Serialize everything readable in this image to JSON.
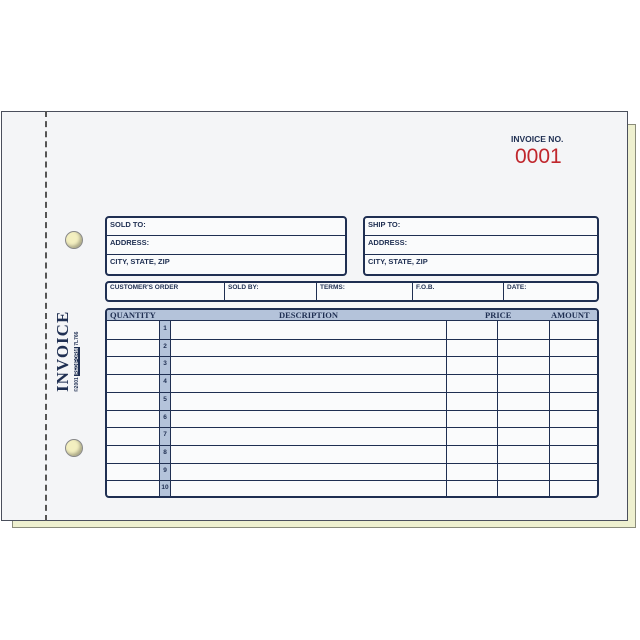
{
  "invoice": {
    "label": "INVOICE NO.",
    "number": "0001",
    "number_color": "#c0272d"
  },
  "side": {
    "title": "INVOICE",
    "copyright": "©2001",
    "brand": "REDIFORM",
    "code": "7L766"
  },
  "sold": {
    "sold_to": "SOLD TO:",
    "address": "ADDRESS:",
    "city": "CITY, STATE, ZIP"
  },
  "ship": {
    "ship_to": "SHIP TO:",
    "address": "ADDRESS:",
    "city": "CITY, STATE, ZIP"
  },
  "order": [
    "CUSTOMER'S ORDER",
    "SOLD BY:",
    "TERMS:",
    "F.O.B.",
    "DATE:"
  ],
  "table": {
    "headers": {
      "quantity": "QUANTITY",
      "description": "DESCRIPTION",
      "price": "PRICE",
      "amount": "AMOUNT"
    },
    "rows": [
      "1",
      "2",
      "3",
      "4",
      "5",
      "6",
      "7",
      "8",
      "9",
      "10"
    ]
  },
  "colors": {
    "ink": "#1f2f52",
    "header": "#b4c3da",
    "carbon": "#eef0cf"
  }
}
